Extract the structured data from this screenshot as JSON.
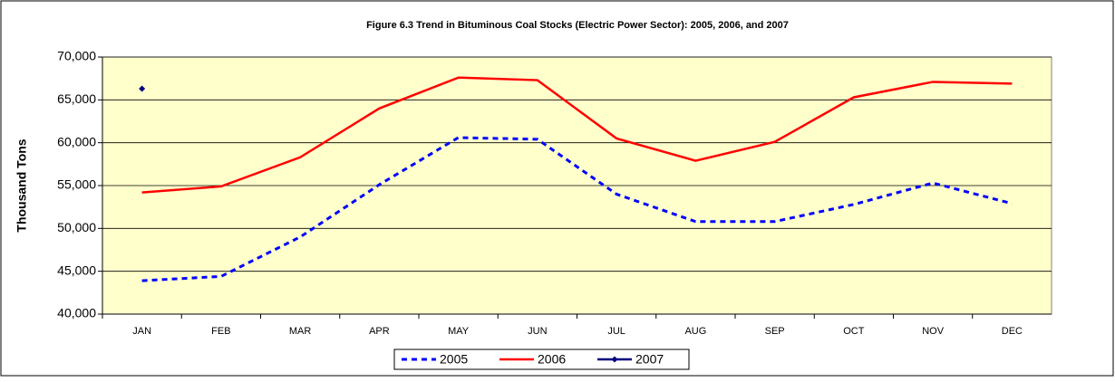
{
  "chart_data": {
    "type": "line",
    "title": "Figure 6.3 Trend in Bituminous Coal Stocks (Electric Power Sector):  2005, 2006, and 2007",
    "y_label": "Thousand Tons",
    "categories": [
      "JAN",
      "FEB",
      "MAR",
      "APR",
      "MAY",
      "JUN",
      "JUL",
      "AUG",
      "SEP",
      "OCT",
      "NOV",
      "DEC"
    ],
    "series": [
      {
        "name": "2005",
        "color": "#0000ff",
        "dash": true,
        "marker": false,
        "values": [
          43900,
          44400,
          49000,
          55100,
          60600,
          60400,
          54000,
          50800,
          50800,
          52800,
          55300,
          52900
        ]
      },
      {
        "name": "2006",
        "color": "#ff0000",
        "dash": false,
        "marker": false,
        "values": [
          54200,
          54900,
          58300,
          64000,
          67600,
          67300,
          60500,
          57900,
          60100,
          65300,
          67100,
          66900
        ]
      },
      {
        "name": "2007",
        "color": "#000080",
        "dash": false,
        "marker": true,
        "values": [
          66300,
          null,
          null,
          null,
          null,
          null,
          null,
          null,
          null,
          null,
          null,
          null
        ]
      }
    ],
    "ylim": [
      40000,
      70000
    ],
    "yticks": [
      {
        "value": 40000,
        "label": "40,000"
      },
      {
        "value": 45000,
        "label": "45,000"
      },
      {
        "value": 50000,
        "label": "50,000"
      },
      {
        "value": 55000,
        "label": "55,000"
      },
      {
        "value": 60000,
        "label": "60,000"
      },
      {
        "value": 65000,
        "label": "65,000"
      },
      {
        "value": 70000,
        "label": "70,000"
      }
    ],
    "grid": true,
    "legend": "bottom",
    "plot_background": "#ffffcc"
  }
}
